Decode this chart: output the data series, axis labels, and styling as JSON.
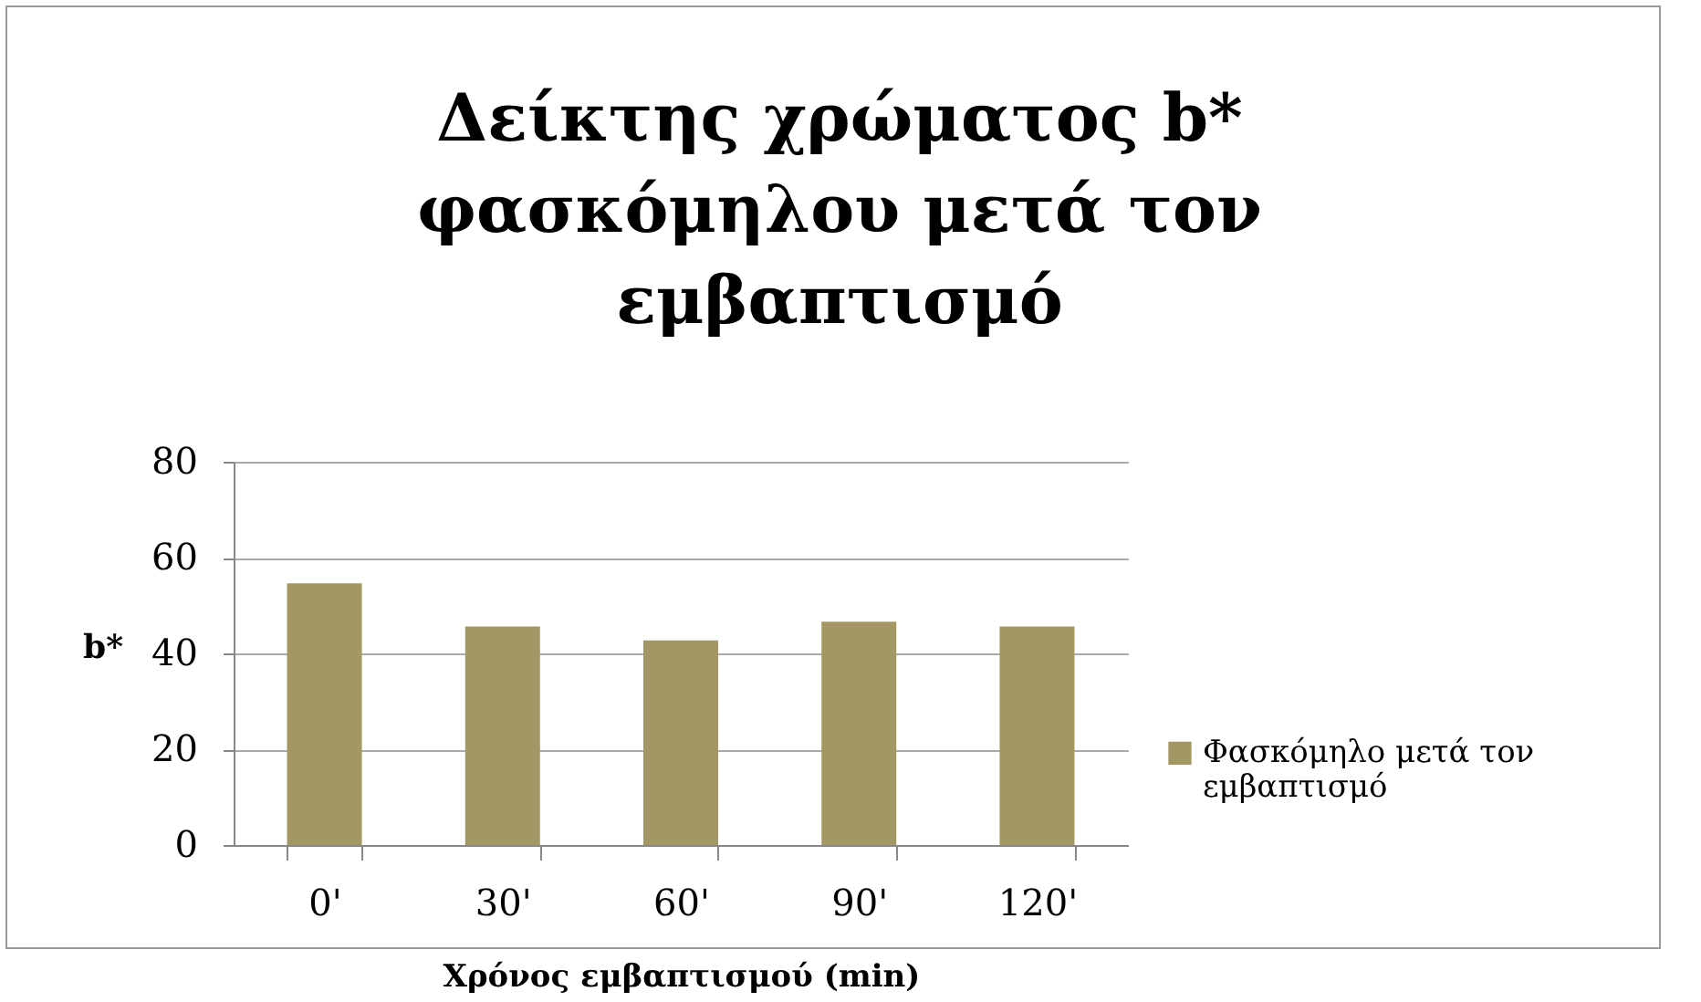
{
  "chart_data": {
    "type": "bar",
    "title": "Δείκτης χρώματος b* φασκόμηλου μετά τον εμβαπτισμό",
    "xlabel": "Χρόνος εμβαπτισμού (min)",
    "ylabel": "b*",
    "categories": [
      "0'",
      "30'",
      "60'",
      "90'",
      "120'"
    ],
    "series": [
      {
        "name": "Φασκόμηλο μετά τον εμβαπτισμό",
        "color": "#a39764",
        "values": [
          54.6,
          45.6,
          42.7,
          46.6,
          45.6
        ]
      }
    ],
    "ylim": [
      0,
      80
    ],
    "yticks": [
      0,
      20,
      40,
      60,
      80
    ],
    "grid": "y",
    "legend": "right"
  }
}
